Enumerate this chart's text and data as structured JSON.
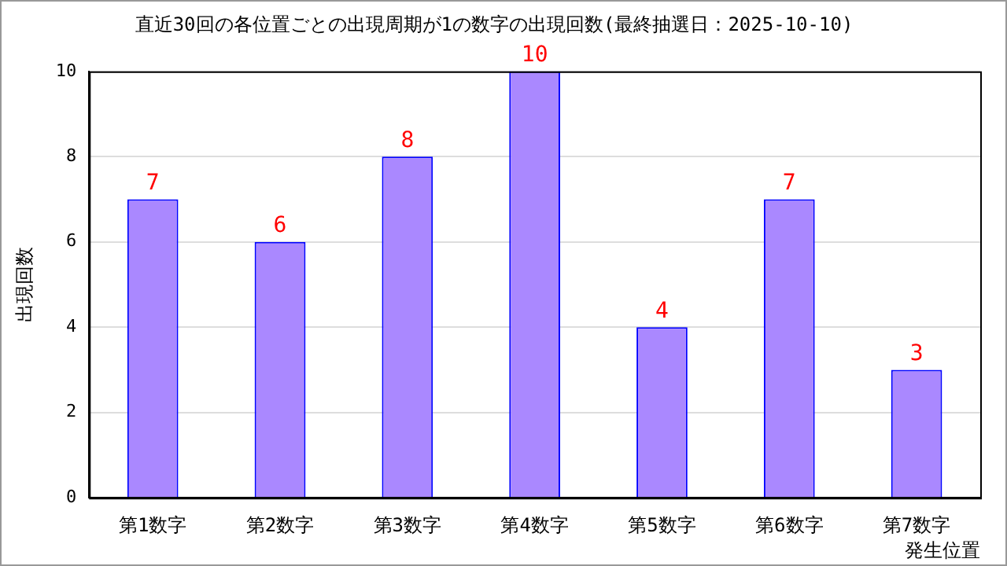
{
  "chart_data": {
    "type": "bar",
    "title": "直近30回の各位置ごとの出現周期が1の数字の出現回数(最終抽選日：2025-10-10)",
    "xlabel": "発生位置",
    "ylabel": "出現回数",
    "categories": [
      "第1数字",
      "第2数字",
      "第3数字",
      "第4数字",
      "第5数字",
      "第6数字",
      "第7数字"
    ],
    "values": [
      7,
      6,
      8,
      10,
      4,
      7,
      3
    ],
    "color": "#aa88ff",
    "ylim": [
      0,
      10
    ],
    "yticks": [
      0,
      2,
      4,
      6,
      8,
      10
    ],
    "grid": "y",
    "data_labels": true,
    "legend": false
  }
}
